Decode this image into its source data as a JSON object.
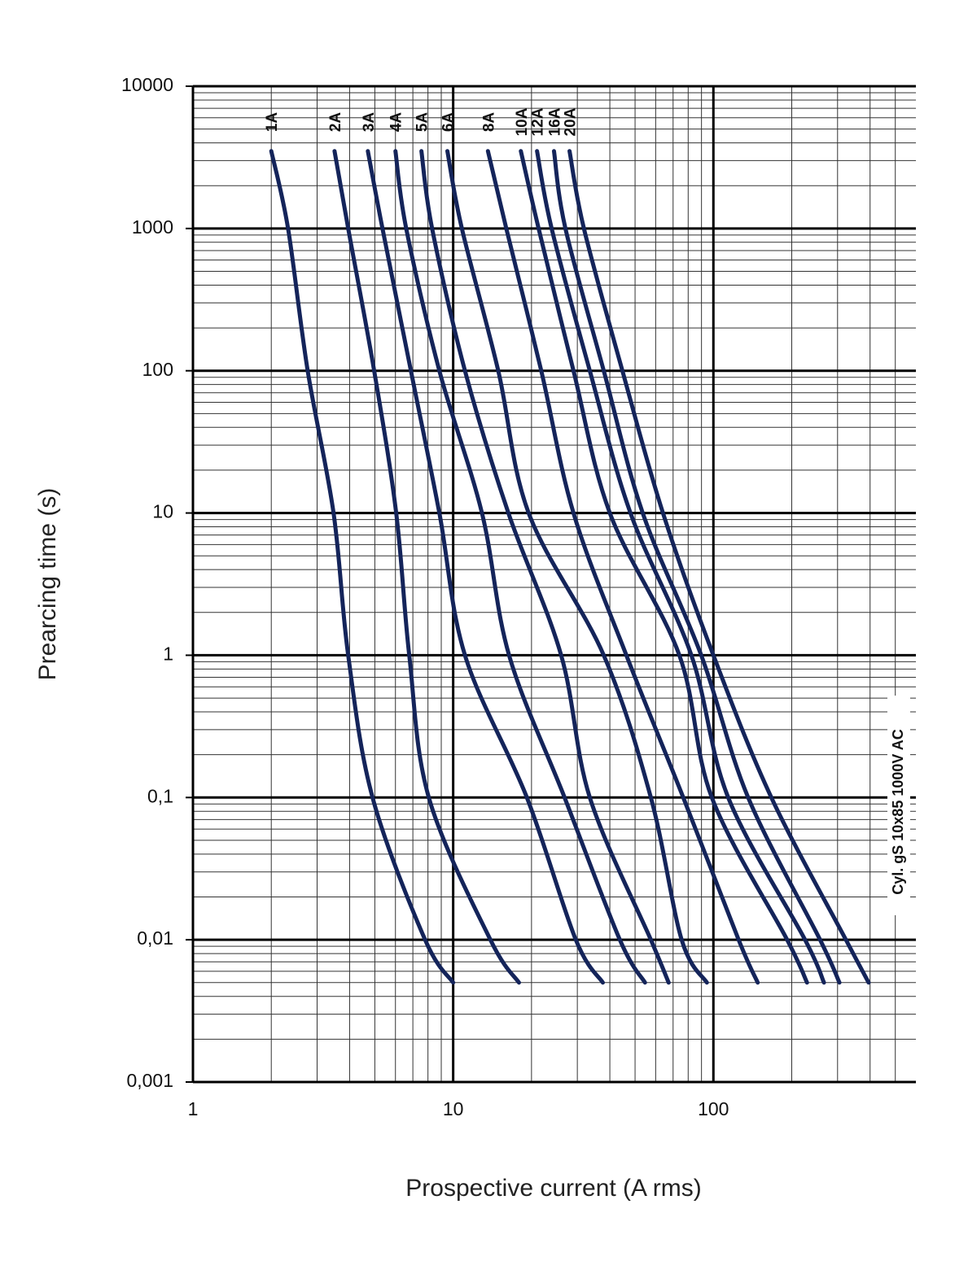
{
  "chart_data": {
    "type": "line",
    "x_label": "Prospective current (A rms)",
    "y_label": "Prearcing time (s)",
    "annotation": "Cyl. gS 10x85 1000V AC",
    "log_x": true,
    "log_y": true,
    "grid": true,
    "xlim": [
      1,
      600
    ],
    "ylim": [
      0.001,
      10000
    ],
    "xticks": [
      1,
      10,
      100
    ],
    "yticks": [
      {
        "value": 0.001,
        "label": "0,001"
      },
      {
        "value": 0.01,
        "label": "0,01"
      },
      {
        "value": 0.1,
        "label": "0,1"
      },
      1,
      10,
      100,
      1000,
      10000
    ],
    "series": [
      {
        "name": "1A",
        "color": "#14245a",
        "x": [
          2.0,
          2.32,
          2.76,
          3.47,
          3.95,
          4.9,
          7.8,
          10
        ],
        "values": [
          3500,
          1000,
          100,
          10,
          1,
          0.1,
          0.01,
          0.005
        ]
      },
      {
        "name": "2A",
        "color": "#14245a",
        "x": [
          3.5,
          3.95,
          4.97,
          6.04,
          6.78,
          8.06,
          13.9,
          17.9
        ],
        "values": [
          3500,
          1000,
          100,
          10,
          1,
          0.1,
          0.01,
          0.005
        ]
      },
      {
        "name": "3A",
        "color": "#14245a",
        "x": [
          4.7,
          5.35,
          6.88,
          8.85,
          11.1,
          19.2,
          29.6,
          37.6
        ],
        "values": [
          3500,
          1000,
          100,
          10,
          1,
          0.1,
          0.01,
          0.005
        ]
      },
      {
        "name": "4A",
        "color": "#14245a",
        "x": [
          6.0,
          6.6,
          8.85,
          12.9,
          16.4,
          26.8,
          43.7,
          54.6
        ],
        "values": [
          3500,
          1000,
          100,
          10,
          1,
          0.1,
          0.01,
          0.005
        ]
      },
      {
        "name": "5A",
        "color": "#14245a",
        "x": [
          7.55,
          8.3,
          11.1,
          16.3,
          26,
          33.5,
          57.5,
          67.3
        ],
        "values": [
          3500,
          1000,
          100,
          10,
          1,
          0.1,
          0.01,
          0.005
        ]
      },
      {
        "name": "6A",
        "color": "#14245a",
        "x": [
          9.5,
          10.8,
          14.9,
          19.5,
          37.9,
          57.5,
          75.5,
          94.4
        ],
        "values": [
          3500,
          1000,
          100,
          10,
          1,
          0.1,
          0.01,
          0.005
        ]
      },
      {
        "name": "8A",
        "color": "#14245a",
        "x": [
          13.6,
          16,
          21.8,
          29,
          46.3,
          76.6,
          125,
          148
        ],
        "values": [
          3500,
          1000,
          100,
          10,
          1,
          0.1,
          0.01,
          0.005
        ]
      },
      {
        "name": "10A",
        "color": "#14245a",
        "x": [
          18.2,
          21.3,
          29,
          40,
          74,
          98.6,
          192,
          229
        ],
        "values": [
          3500,
          1000,
          100,
          10,
          1,
          0.1,
          0.01,
          0.005
        ]
      },
      {
        "name": "12A",
        "color": "#14245a",
        "x": [
          21,
          23.9,
          33.5,
          48,
          82.3,
          114,
          225,
          266
        ],
        "values": [
          3500,
          1000,
          100,
          10,
          1,
          0.1,
          0.01,
          0.005
        ]
      },
      {
        "name": "16A",
        "color": "#14245a",
        "x": [
          24.4,
          27,
          37.9,
          53.5,
          89.8,
          136,
          257,
          305
        ],
        "values": [
          3500,
          1000,
          100,
          10,
          1,
          0.1,
          0.01,
          0.005
        ]
      },
      {
        "name": "20A",
        "color": "#14245a",
        "x": [
          28,
          31.8,
          44.7,
          64,
          100,
          167,
          323,
          395
        ],
        "values": [
          3500,
          1000,
          100,
          10,
          1,
          0.1,
          0.01,
          0.005
        ]
      }
    ]
  }
}
